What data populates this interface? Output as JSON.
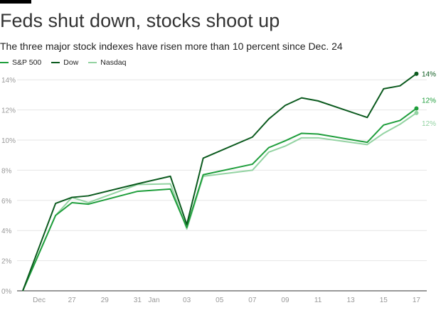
{
  "title": "Feds shut down, stocks shoot up",
  "subtitle": "The three major stock indexes have risen more than 10 percent since Dec. 24",
  "chart_data": {
    "type": "line",
    "title": "Feds shut down, stocks shoot up",
    "ylim": [
      0,
      14
    ],
    "yticks": [
      "0%",
      "2%",
      "4%",
      "6%",
      "8%",
      "10%",
      "12%",
      "14%"
    ],
    "xtick_labels": [
      {
        "day": 1,
        "label": "Dec"
      },
      {
        "day": 3,
        "label": "27"
      },
      {
        "day": 5,
        "label": "29"
      },
      {
        "day": 7,
        "label": "31"
      },
      {
        "day": 8,
        "label": "Jan"
      },
      {
        "day": 10,
        "label": "03"
      },
      {
        "day": 12,
        "label": "05"
      },
      {
        "day": 14,
        "label": "07"
      },
      {
        "day": 16,
        "label": "09"
      },
      {
        "day": 18,
        "label": "11"
      },
      {
        "day": 20,
        "label": "13"
      },
      {
        "day": 22,
        "label": "15"
      },
      {
        "day": 24,
        "label": "17"
      }
    ],
    "x_days": [
      0,
      2,
      3,
      4,
      7,
      9,
      10,
      11,
      14,
      15,
      16,
      17,
      18,
      21,
      22,
      23,
      24
    ],
    "x_dates": [
      "Dec 24",
      "Dec 26",
      "Dec 27",
      "Dec 28",
      "Dec 31",
      "Jan 02",
      "Jan 03",
      "Jan 04",
      "Jan 07",
      "Jan 08",
      "Jan 09",
      "Jan 10",
      "Jan 11",
      "Jan 14",
      "Jan 15",
      "Jan 16",
      "Jan 17"
    ],
    "series": [
      {
        "name": "S&P 500",
        "color": "#1f9e3c",
        "end_label": "12%",
        "values": [
          0,
          5.0,
          5.85,
          5.75,
          6.6,
          6.75,
          4.2,
          7.7,
          8.4,
          9.5,
          9.95,
          10.45,
          10.4,
          9.85,
          11.0,
          11.3,
          12.1
        ]
      },
      {
        "name": "Dow",
        "color": "#0b5a1e",
        "end_label": "14%",
        "values": [
          0,
          5.8,
          6.2,
          6.3,
          7.1,
          7.6,
          4.4,
          8.8,
          10.2,
          11.4,
          12.3,
          12.8,
          12.6,
          11.5,
          13.4,
          13.6,
          14.4
        ]
      },
      {
        "name": "Nasdaq",
        "color": "#93d3a2",
        "end_label": "12%",
        "values": [
          0,
          5.0,
          6.2,
          5.85,
          7.05,
          7.1,
          4.1,
          7.6,
          8.0,
          9.2,
          9.6,
          10.15,
          10.15,
          9.7,
          10.45,
          11.05,
          11.8
        ]
      }
    ]
  }
}
